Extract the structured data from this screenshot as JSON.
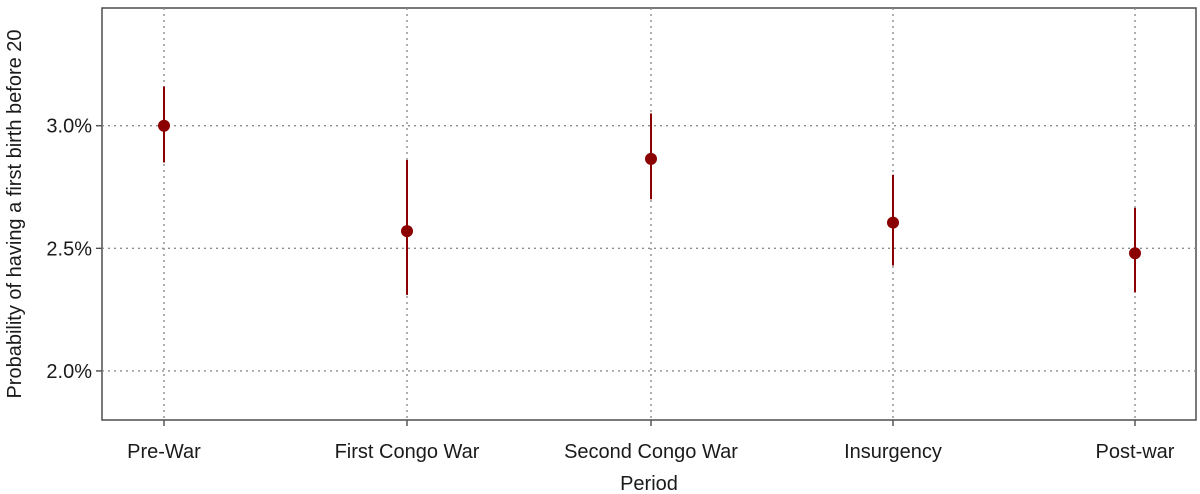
{
  "chart_data": {
    "type": "scatter",
    "subtype": "point-range",
    "title": "",
    "xlabel": "Period",
    "ylabel": "Probability of having a first birth before 20",
    "categories": [
      "Pre-War",
      "First Congo War",
      "Second Congo War",
      "Insurgency",
      "Post-war"
    ],
    "series": [
      {
        "estimate": [
          3.0,
          2.57,
          2.865,
          2.605,
          2.48
        ],
        "lower": [
          2.85,
          2.31,
          2.7,
          2.43,
          2.32
        ],
        "upper": [
          3.16,
          2.86,
          3.05,
          2.8,
          2.665
        ]
      }
    ],
    "yticks": [
      2.0,
      2.5,
      3.0
    ],
    "ytick_labels": [
      "2.0%",
      "2.5%",
      "3.0%"
    ],
    "ylim": [
      1.8,
      3.48
    ],
    "grid": true,
    "grid_style": "dotted",
    "point_color": "#8b0000",
    "grid_color": "#8c8c8c",
    "axis_color": "#4d4d4d"
  }
}
